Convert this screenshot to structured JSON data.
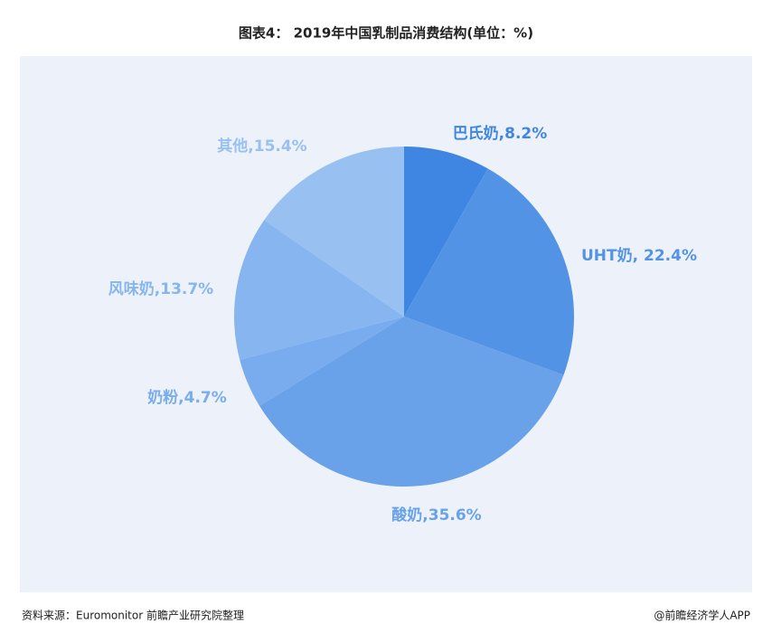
{
  "chart_data": {
    "type": "pie",
    "title": "图表4： 2019年中国乳制品消费结构(单位：%)",
    "values": [
      8.2,
      22.4,
      35.6,
      4.7,
      13.7,
      15.4
    ],
    "value_labels": [
      "巴氏奶,8.2%",
      "UHT奶, 22.4%",
      "酸奶,35.6%",
      "奶粉,4.7%",
      "风味奶,13.7%",
      "其他,15.4%"
    ],
    "colors": [
      "#3f86e3",
      "#5393e6",
      "#6aa2ea",
      "#79acee",
      "#86b5ef",
      "#98c1f2"
    ],
    "source": "资料来源：Euromonitor 前瞻产业研究院整理",
    "credit": "@前瞻经济学人APP"
  }
}
